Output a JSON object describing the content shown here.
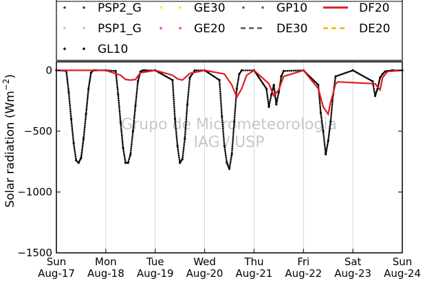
{
  "chart_data": {
    "type": "line",
    "ylabel": "Solar radiation (Wm",
    "ylabel_unit_exp": "−2",
    "ylabel_close": ")",
    "ylim": [
      -1500,
      70
    ],
    "yticks": [
      0,
      -500,
      -1000,
      -1500
    ],
    "ytick_labels": [
      "0",
      "−500",
      "−1000",
      "−1500"
    ],
    "xlim": [
      0,
      7
    ],
    "xticks": [
      {
        "day": "Sun",
        "date": "Aug-17"
      },
      {
        "day": "Mon",
        "date": "Aug-18"
      },
      {
        "day": "Tue",
        "date": "Aug-19"
      },
      {
        "day": "Wed",
        "date": "Aug-20"
      },
      {
        "day": "Thu",
        "date": "Aug-21"
      },
      {
        "day": "Fri",
        "date": "Aug-22"
      },
      {
        "day": "Sat",
        "date": "Aug-23"
      },
      {
        "day": "Sun",
        "date": "Aug-24"
      }
    ],
    "grid": "vertical",
    "legend_position": "top",
    "legend": [
      {
        "label": "PSP2_G",
        "color": "#8b1a1a",
        "style": "dots"
      },
      {
        "label": "GE30",
        "color": "#f5e642",
        "style": "dots"
      },
      {
        "label": "GP10",
        "color": "#1a8a1a",
        "style": "dots"
      },
      {
        "label": "DF20",
        "color": "#e31a1c",
        "style": "solid"
      },
      {
        "label": "PSP1_G",
        "color": "#7fe0d4",
        "style": "dots"
      },
      {
        "label": "GE20",
        "color": "#e03ae0",
        "style": "dots"
      },
      {
        "label": "DE30",
        "color": "#555555",
        "style": "dashed"
      },
      {
        "label": "DE20",
        "color": "#ffaa00",
        "style": "dashed"
      },
      {
        "label": "GL10",
        "color": "#000000",
        "style": "dots"
      }
    ],
    "watermark": [
      "Grupo de Micrometeorologia",
      "IAG / USP"
    ],
    "series": [
      {
        "name": "GL10",
        "color": "#000000",
        "style": "dots",
        "x": [
          0.0,
          0.2,
          0.25,
          0.3,
          0.35,
          0.4,
          0.45,
          0.5,
          0.55,
          0.6,
          0.65,
          0.7,
          0.75,
          0.8,
          1.0,
          1.2,
          1.25,
          1.3,
          1.35,
          1.4,
          1.45,
          1.5,
          1.55,
          1.6,
          1.65,
          1.7,
          1.75,
          1.8,
          2.0,
          2.35,
          2.4,
          2.45,
          2.5,
          2.55,
          2.6,
          2.65,
          2.7,
          2.8,
          3.0,
          3.3,
          3.35,
          3.4,
          3.45,
          3.5,
          3.55,
          3.6,
          3.65,
          3.7,
          3.75,
          4.0,
          4.25,
          4.3,
          4.35,
          4.4,
          4.45,
          4.5,
          4.55,
          4.6,
          5.0,
          5.3,
          5.35,
          5.4,
          5.45,
          5.5,
          5.55,
          5.6,
          5.65,
          6.0,
          6.4,
          6.45,
          6.5,
          6.55,
          6.6,
          6.65,
          6.7,
          6.8,
          7.0
        ],
        "y": [
          0,
          -5,
          -180,
          -400,
          -600,
          -740,
          -760,
          -720,
          -560,
          -360,
          -150,
          -20,
          0,
          0,
          0,
          -5,
          -200,
          -430,
          -640,
          -760,
          -760,
          -690,
          -500,
          -290,
          -90,
          -10,
          0,
          0,
          0,
          -80,
          -400,
          -620,
          -760,
          -730,
          -560,
          -280,
          -60,
          0,
          0,
          -80,
          -380,
          -620,
          -760,
          -810,
          -690,
          -420,
          -150,
          -30,
          0,
          0,
          -150,
          -300,
          -200,
          -120,
          -280,
          -180,
          -50,
          -5,
          0,
          -120,
          -350,
          -500,
          -690,
          -580,
          -420,
          -200,
          -50,
          0,
          -90,
          -210,
          -150,
          -60,
          -30,
          -10,
          -5,
          0,
          0
        ]
      },
      {
        "name": "DF20",
        "color": "#e31a1c",
        "style": "solid",
        "x": [
          0.0,
          1.0,
          1.3,
          1.4,
          1.5,
          1.6,
          1.7,
          2.0,
          2.35,
          2.45,
          2.55,
          2.7,
          3.0,
          3.4,
          3.55,
          3.65,
          3.75,
          3.85,
          4.0,
          4.3,
          4.4,
          4.5,
          4.6,
          5.0,
          5.3,
          5.4,
          5.5,
          5.55,
          5.6,
          5.65,
          5.7,
          6.45,
          6.55,
          6.6,
          6.7,
          7.0
        ],
        "y": [
          0,
          0,
          -40,
          -75,
          -80,
          -75,
          -20,
          0,
          -40,
          -70,
          -80,
          -25,
          0,
          -30,
          -120,
          -220,
          -150,
          -40,
          0,
          -110,
          -210,
          -160,
          -50,
          0,
          -150,
          -300,
          -360,
          -260,
          -190,
          -110,
          -95,
          -110,
          -160,
          -60,
          -10,
          0
        ]
      }
    ]
  }
}
